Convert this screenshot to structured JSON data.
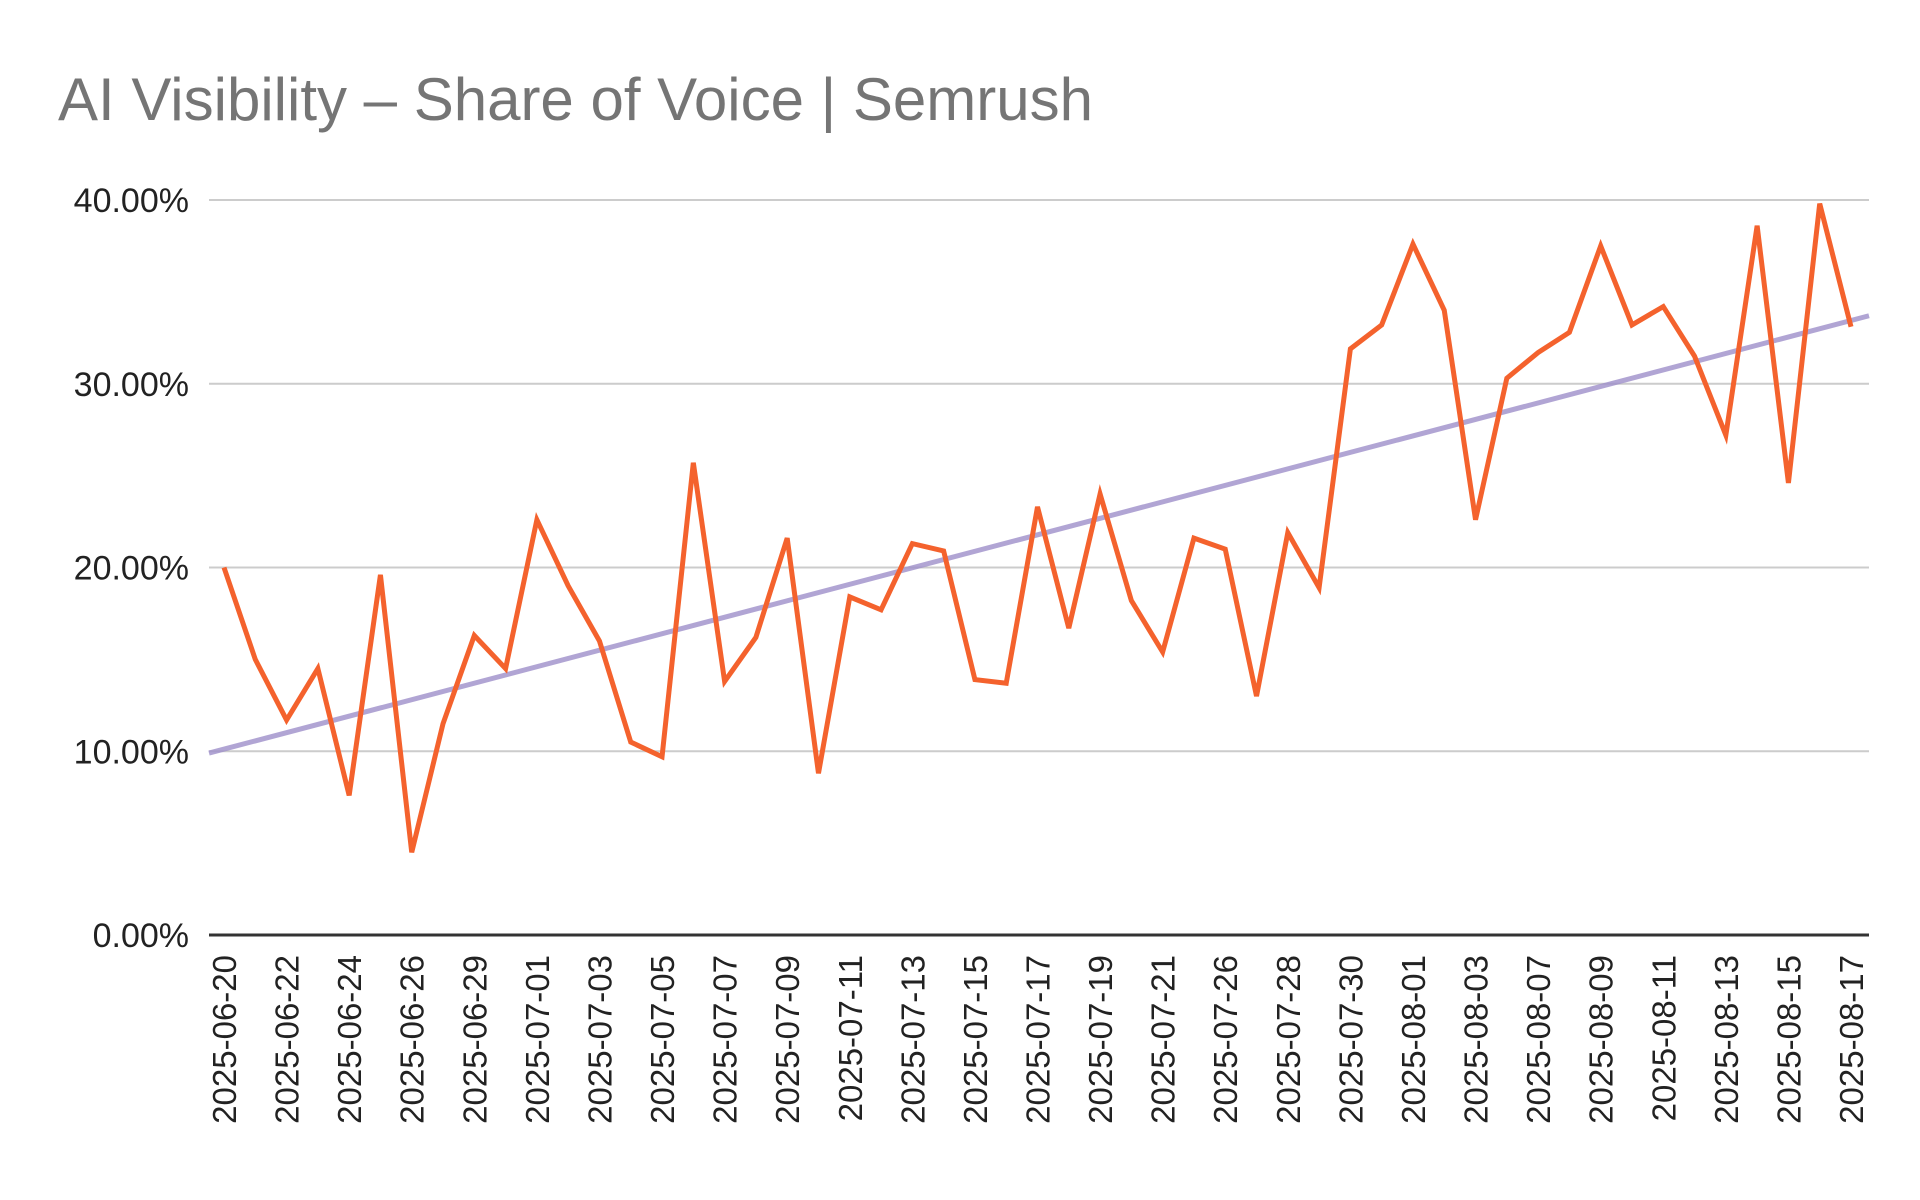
{
  "chart_data": {
    "type": "line",
    "title": "AI Visibility – Share of Voice | Semrush",
    "xlabel": "",
    "ylabel": "",
    "ylim": [
      0,
      40
    ],
    "yticks": [
      "0.00%",
      "10.00%",
      "20.00%",
      "30.00%",
      "40.00%"
    ],
    "ytick_values": [
      0,
      10,
      20,
      30,
      40
    ],
    "x_labels": [
      "2025-06-20",
      "2025-06-22",
      "2025-06-24",
      "2025-06-26",
      "2025-06-29",
      "2025-07-01",
      "2025-07-03",
      "2025-07-05",
      "2025-07-07",
      "2025-07-09",
      "2025-07-11",
      "2025-07-13",
      "2025-07-15",
      "2025-07-17",
      "2025-07-19",
      "2025-07-21",
      "2025-07-26",
      "2025-07-28",
      "2025-07-30",
      "2025-08-01",
      "2025-08-03",
      "2025-08-07",
      "2025-08-09",
      "2025-08-11",
      "2025-08-13",
      "2025-08-15",
      "2025-08-17"
    ],
    "label_every": 2,
    "grid": true,
    "legend": "none",
    "series": [
      {
        "name": "Share of Voice",
        "color": "#f4622d",
        "values": [
          20.0,
          15.0,
          11.7,
          14.5,
          7.6,
          19.6,
          4.5,
          11.5,
          16.3,
          14.5,
          22.6,
          19.0,
          16.0,
          10.5,
          9.7,
          25.7,
          13.8,
          16.2,
          21.6,
          8.8,
          18.4,
          17.7,
          21.3,
          20.9,
          13.9,
          13.7,
          23.3,
          16.7,
          24.0,
          18.2,
          15.4,
          21.6,
          21.0,
          13.0,
          21.9,
          18.9,
          31.9,
          33.2,
          37.6,
          34.0,
          22.6,
          30.3,
          31.7,
          32.8,
          37.5,
          33.2,
          34.2,
          31.5,
          27.2,
          38.6,
          24.6,
          39.8,
          33.1
        ]
      },
      {
        "name": "Trendline",
        "color": "#9e8fc9",
        "type": "linear",
        "start": 9.9,
        "end": 33.7
      }
    ]
  }
}
